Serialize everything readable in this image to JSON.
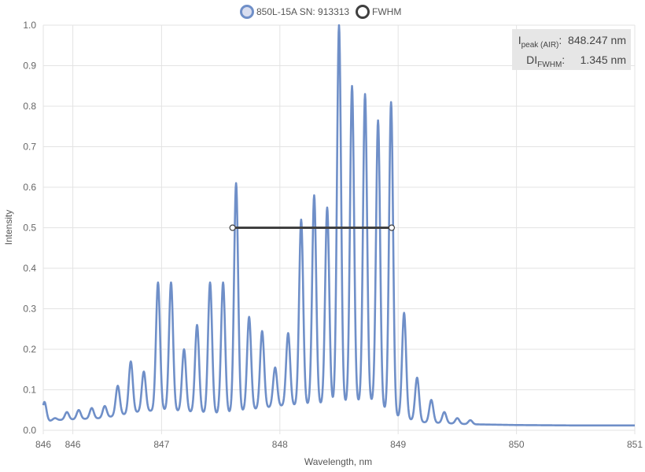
{
  "legend": {
    "items": [
      {
        "label": "850L-15A SN: 913313",
        "color": "#6f8fc8",
        "fill": "#d9def0"
      },
      {
        "label": "FWHM",
        "color": "#404040",
        "fill": "#ffffff"
      }
    ]
  },
  "info": {
    "peak_label_main": "I",
    "peak_label_sub": "peak (AIR)",
    "peak_value": "848.247 nm",
    "fwhm_label_main": "DI",
    "fwhm_label_sub": "FWHM",
    "fwhm_value": "1.345 nm"
  },
  "chart_data": {
    "type": "line",
    "xlabel": "Wavelength, nm",
    "ylabel": "Intensity",
    "xlim": [
      846,
      851
    ],
    "ylim": [
      0,
      1.0
    ],
    "x_ticks": [
      {
        "value": 846,
        "label": "846"
      },
      {
        "value": 846.25,
        "label": "846"
      },
      {
        "value": 847,
        "label": "847"
      },
      {
        "value": 848,
        "label": "848"
      },
      {
        "value": 849,
        "label": "849"
      },
      {
        "value": 850,
        "label": "850"
      },
      {
        "value": 851,
        "label": "851"
      }
    ],
    "y_ticks": [
      0,
      0.1,
      0.2,
      0.3,
      0.4,
      0.5,
      0.6,
      0.7,
      0.8,
      0.9,
      1.0
    ],
    "grid": true,
    "legend_position": "top-center",
    "series": [
      {
        "name": "850L-15A SN: 913313",
        "color": "#6f8fc8",
        "baseline": {
          "x": [
            846.0,
            846.1,
            846.5,
            846.8,
            847.0,
            847.5,
            848.0,
            848.5,
            848.8,
            848.95,
            849.2,
            849.6,
            850.0,
            850.5,
            851.0
          ],
          "y": [
            0.02,
            0.025,
            0.03,
            0.045,
            0.05,
            0.04,
            0.06,
            0.065,
            0.07,
            0.035,
            0.02,
            0.015,
            0.013,
            0.012,
            0.012
          ]
        },
        "peaks": [
          {
            "x": 846.01,
            "y": 0.07
          },
          {
            "x": 846.1,
            "y": 0.03
          },
          {
            "x": 846.2,
            "y": 0.045
          },
          {
            "x": 846.3,
            "y": 0.05
          },
          {
            "x": 846.41,
            "y": 0.055
          },
          {
            "x": 846.52,
            "y": 0.06
          },
          {
            "x": 846.63,
            "y": 0.11
          },
          {
            "x": 846.74,
            "y": 0.17
          },
          {
            "x": 846.85,
            "y": 0.145
          },
          {
            "x": 846.97,
            "y": 0.365
          },
          {
            "x": 847.08,
            "y": 0.365
          },
          {
            "x": 847.19,
            "y": 0.2
          },
          {
            "x": 847.3,
            "y": 0.26
          },
          {
            "x": 847.41,
            "y": 0.365
          },
          {
            "x": 847.52,
            "y": 0.365
          },
          {
            "x": 847.63,
            "y": 0.61
          },
          {
            "x": 847.74,
            "y": 0.28
          },
          {
            "x": 847.85,
            "y": 0.245
          },
          {
            "x": 847.96,
            "y": 0.155
          },
          {
            "x": 848.07,
            "y": 0.24
          },
          {
            "x": 848.18,
            "y": 0.52
          },
          {
            "x": 848.29,
            "y": 0.58
          },
          {
            "x": 848.4,
            "y": 0.55
          },
          {
            "x": 848.5,
            "y": 1.0
          },
          {
            "x": 848.61,
            "y": 0.85
          },
          {
            "x": 848.72,
            "y": 0.83
          },
          {
            "x": 848.83,
            "y": 0.765
          },
          {
            "x": 848.94,
            "y": 0.81
          },
          {
            "x": 849.05,
            "y": 0.29
          },
          {
            "x": 849.16,
            "y": 0.13
          },
          {
            "x": 849.28,
            "y": 0.075
          },
          {
            "x": 849.39,
            "y": 0.045
          },
          {
            "x": 849.5,
            "y": 0.03
          },
          {
            "x": 849.61,
            "y": 0.025
          }
        ]
      },
      {
        "name": "FWHM",
        "color": "#404040",
        "x": [
          847.6,
          848.945
        ],
        "y": [
          0.5,
          0.5
        ]
      }
    ]
  }
}
